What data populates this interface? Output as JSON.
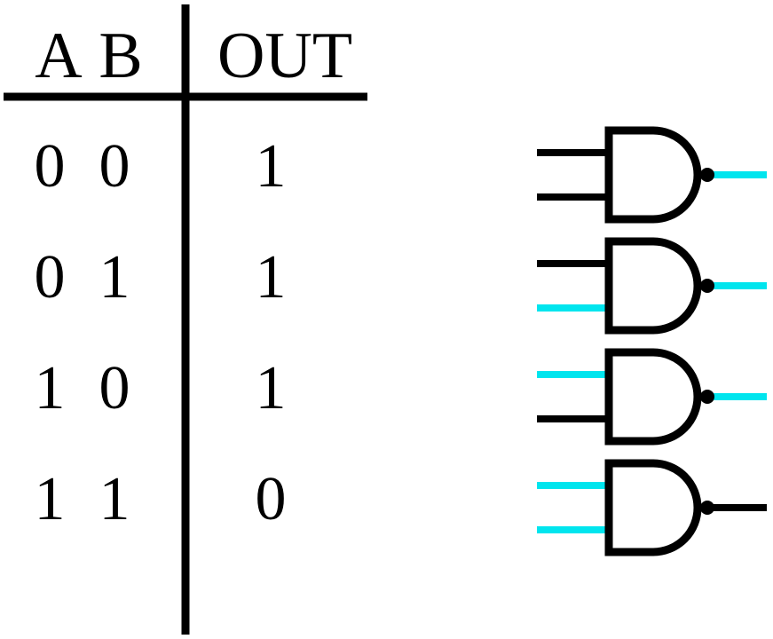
{
  "truth_table": {
    "headers": {
      "a": "A",
      "b": "B",
      "out": "OUT"
    },
    "rows": [
      {
        "a": "0",
        "b": "0",
        "out": "1"
      },
      {
        "a": "0",
        "b": "1",
        "out": "1"
      },
      {
        "a": "1",
        "b": "0",
        "out": "1"
      },
      {
        "a": "1",
        "b": "1",
        "out": "0"
      }
    ]
  },
  "gates": {
    "type": "NAND",
    "states": [
      {
        "input_a": 0,
        "input_b": 0,
        "output": 1
      },
      {
        "input_a": 0,
        "input_b": 1,
        "output": 1
      },
      {
        "input_a": 1,
        "input_b": 0,
        "output": 1
      },
      {
        "input_a": 1,
        "input_b": 1,
        "output": 0
      }
    ]
  },
  "colors": {
    "low": "#000000",
    "high": "#00e5ee",
    "outline": "#000000",
    "background": "#ffffff"
  }
}
